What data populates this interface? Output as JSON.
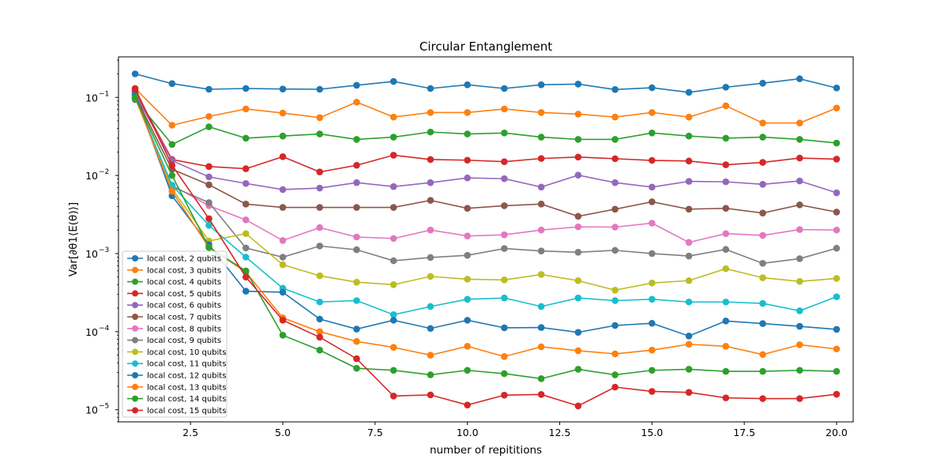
{
  "chart_data": {
    "type": "line",
    "title": "Circular Entanglement",
    "xlabel": "number of repititions",
    "ylabel": "Var[∂θ1⟨E(θ)⟩]",
    "yscale": "log",
    "xlim": [
      0.55,
      20.45
    ],
    "ylim": [
      7e-06,
      0.33
    ],
    "xticks": [
      2.5,
      5.0,
      7.5,
      10.0,
      12.5,
      15.0,
      17.5,
      20.0
    ],
    "xtick_labels": [
      "2.5",
      "5.0",
      "7.5",
      "10.0",
      "12.5",
      "15.0",
      "17.5",
      "20.0"
    ],
    "yticks": [
      1e-05,
      0.0001,
      0.001,
      0.01,
      0.1
    ],
    "ytick_labels": [
      "10",
      "10",
      "10",
      "10",
      "10"
    ],
    "ytick_exponents": [
      "−5",
      "−4",
      "−3",
      "−2",
      "−1"
    ],
    "grid": false,
    "legend_position": "lower-left",
    "x": [
      1,
      2,
      3,
      4,
      5,
      6,
      7,
      8,
      9,
      10,
      11,
      12,
      13,
      14,
      15,
      16,
      17,
      18,
      19,
      20
    ],
    "series": [
      {
        "name": "local cost, 2 qubits",
        "color": "#1f77b4",
        "values": [
          0.2,
          0.15,
          0.127,
          0.13,
          0.128,
          0.127,
          0.143,
          0.16,
          0.13,
          0.145,
          0.13,
          0.145,
          0.148,
          0.126,
          0.133,
          0.116,
          0.135,
          0.152,
          0.173,
          0.132
        ]
      },
      {
        "name": "local cost, 3 qubits",
        "color": "#ff7f0e",
        "values": [
          0.13,
          0.044,
          0.057,
          0.071,
          0.063,
          0.055,
          0.087,
          0.056,
          0.064,
          0.064,
          0.071,
          0.064,
          0.061,
          0.056,
          0.064,
          0.056,
          0.078,
          0.047,
          0.047,
          0.073
        ]
      },
      {
        "name": "local cost, 4 qubits",
        "color": "#2ca02c",
        "values": [
          0.094,
          0.025,
          0.042,
          0.03,
          0.032,
          0.034,
          0.029,
          0.031,
          0.036,
          0.034,
          0.035,
          0.031,
          0.029,
          0.029,
          0.035,
          0.032,
          0.03,
          0.031,
          0.029,
          0.026
        ]
      },
      {
        "name": "local cost, 5 qubits",
        "color": "#d62728",
        "values": [
          0.12,
          0.016,
          0.013,
          0.0122,
          0.0174,
          0.0111,
          0.0135,
          0.0182,
          0.016,
          0.0157,
          0.015,
          0.0165,
          0.0172,
          0.0164,
          0.0156,
          0.0153,
          0.0137,
          0.0147,
          0.0167,
          0.0162
        ]
      },
      {
        "name": "local cost, 6 qubits",
        "color": "#9467bd",
        "values": [
          0.11,
          0.0155,
          0.0096,
          0.0079,
          0.0066,
          0.0069,
          0.0081,
          0.0072,
          0.0081,
          0.0093,
          0.0091,
          0.0071,
          0.0101,
          0.0081,
          0.0071,
          0.0084,
          0.0083,
          0.0077,
          0.0085,
          0.006
        ]
      },
      {
        "name": "local cost, 7 qubits",
        "color": "#8c564b",
        "values": [
          0.105,
          0.012,
          0.0076,
          0.0043,
          0.0039,
          0.0039,
          0.0039,
          0.0039,
          0.0048,
          0.0038,
          0.0041,
          0.0043,
          0.003,
          0.0037,
          0.0046,
          0.0037,
          0.0038,
          0.0033,
          0.0042,
          0.0034
        ]
      },
      {
        "name": "local cost, 8 qubits",
        "color": "#e377c2",
        "values": [
          0.1,
          0.0075,
          0.0041,
          0.0027,
          0.00147,
          0.00215,
          0.00163,
          0.00156,
          0.002,
          0.00168,
          0.00174,
          0.002,
          0.0022,
          0.00218,
          0.00245,
          0.00139,
          0.0018,
          0.00171,
          0.00203,
          0.002
        ]
      },
      {
        "name": "local cost, 9 qubits",
        "color": "#7f7f7f",
        "values": [
          0.098,
          0.0072,
          0.0045,
          0.00118,
          0.0009,
          0.00125,
          0.00112,
          0.00081,
          0.00089,
          0.00095,
          0.00116,
          0.00108,
          0.00104,
          0.0011,
          0.001,
          0.00093,
          0.00113,
          0.00075,
          0.00086,
          0.00117
        ]
      },
      {
        "name": "local cost, 10 qubits",
        "color": "#bcbd22",
        "values": [
          0.105,
          0.0068,
          0.00145,
          0.0018,
          0.00072,
          0.00052,
          0.00043,
          0.0004,
          0.00051,
          0.00047,
          0.00046,
          0.00054,
          0.00045,
          0.00034,
          0.00042,
          0.00045,
          0.00064,
          0.00049,
          0.00044,
          0.00048
        ]
      },
      {
        "name": "local cost, 11 qubits",
        "color": "#17becf",
        "values": [
          0.1,
          0.0075,
          0.0023,
          0.0009,
          0.00036,
          0.00024,
          0.00025,
          0.000165,
          0.00021,
          0.00026,
          0.00027,
          0.00021,
          0.00027,
          0.00025,
          0.00026,
          0.00024,
          0.00024,
          0.00023,
          0.000185,
          0.00028
        ]
      },
      {
        "name": "local cost, 12 qubits",
        "color": "#1f77b4",
        "values": [
          0.11,
          0.0055,
          0.0013,
          0.00033,
          0.00032,
          0.000145,
          0.000108,
          0.00014,
          0.00011,
          0.00014,
          0.000112,
          0.000113,
          9.8e-05,
          0.00012,
          0.000128,
          8.8e-05,
          0.000137,
          0.000127,
          0.000117,
          0.000107
        ]
      },
      {
        "name": "local cost, 13 qubits",
        "color": "#ff7f0e",
        "values": [
          0.1,
          0.0063,
          0.0012,
          0.00058,
          0.00015,
          0.0001,
          7.5e-05,
          6.3e-05,
          5e-05,
          6.5e-05,
          4.8e-05,
          6.4e-05,
          5.7e-05,
          5.2e-05,
          5.8e-05,
          6.9e-05,
          6.5e-05,
          5.1e-05,
          6.8e-05,
          6e-05
        ]
      },
      {
        "name": "local cost, 14 qubits",
        "color": "#2ca02c",
        "values": [
          0.1,
          0.01,
          0.0012,
          0.0006,
          9e-05,
          5.8e-05,
          3.4e-05,
          3.2e-05,
          2.8e-05,
          3.2e-05,
          2.9e-05,
          2.5e-05,
          3.3e-05,
          2.8e-05,
          3.2e-05,
          3.3e-05,
          3.1e-05,
          3.1e-05,
          3.2e-05,
          3.1e-05
        ]
      },
      {
        "name": "local cost, 15 qubits",
        "color": "#d62728",
        "values": [
          0.13,
          0.0135,
          0.0028,
          0.0005,
          0.00014,
          8.5e-05,
          4.5e-05,
          1.5e-05,
          1.55e-05,
          1.15e-05,
          1.54e-05,
          1.57e-05,
          1.12e-05,
          1.95e-05,
          1.72e-05,
          1.67e-05,
          1.42e-05,
          1.39e-05,
          1.39e-05,
          1.58e-05
        ]
      }
    ]
  }
}
